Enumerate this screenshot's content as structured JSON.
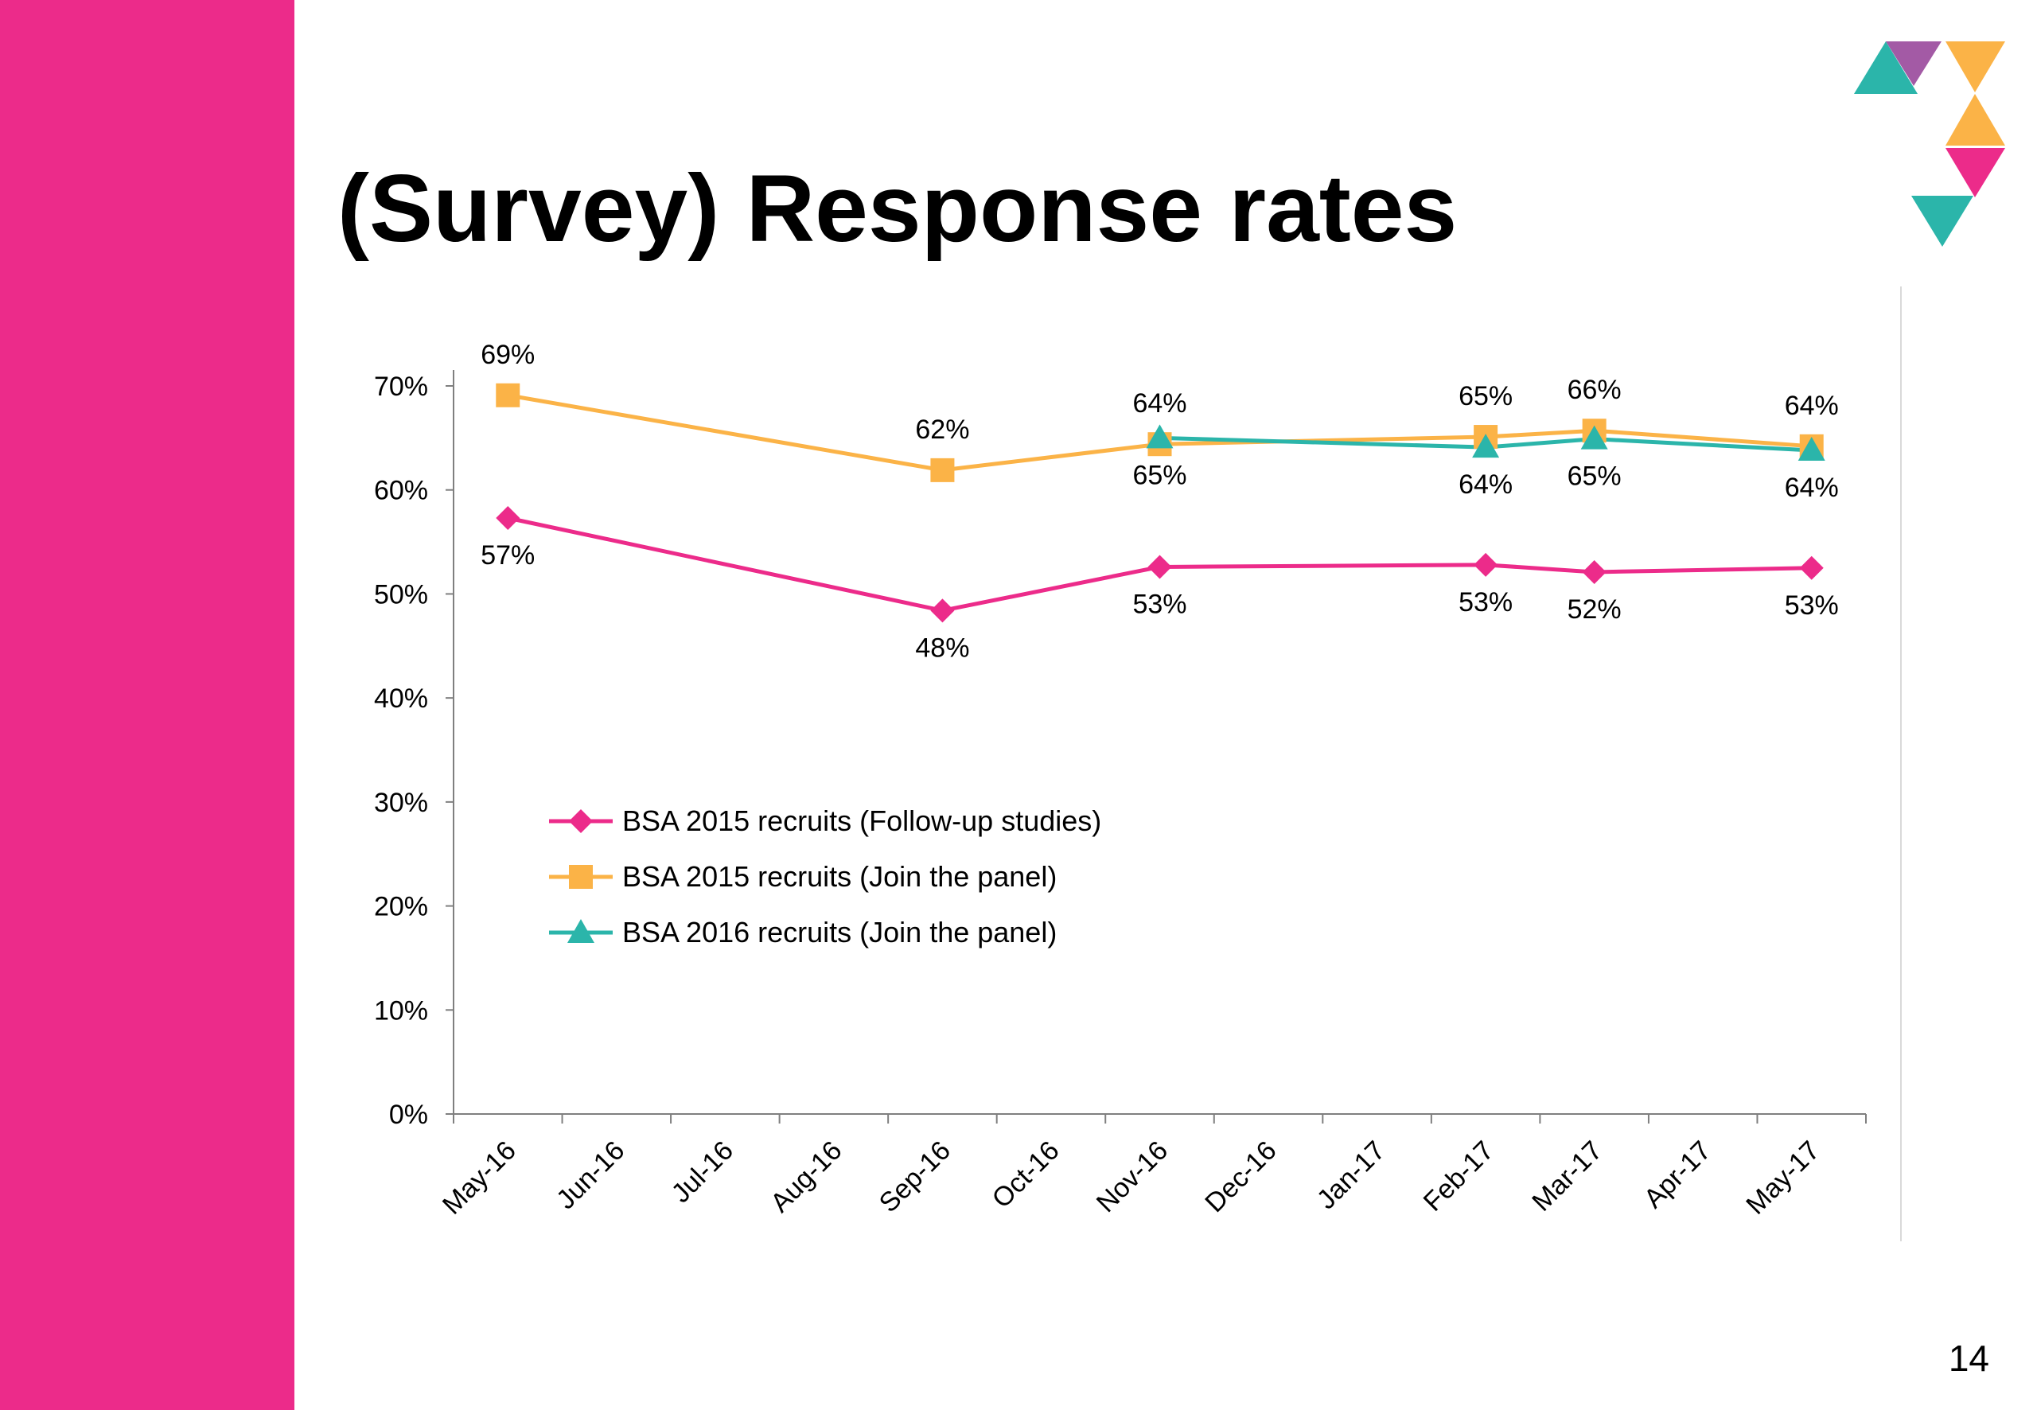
{
  "slide": {
    "title": "(Survey) Response rates",
    "page_number": "14",
    "colors": {
      "sidebar": "#ec2b8a",
      "pink": "#ec2b8a",
      "orange": "#fbb347",
      "teal": "#2bb5aa",
      "purple": "#a35aa5"
    },
    "logo": {
      "icon": "triangle-logo-icon"
    }
  },
  "chart_data": {
    "type": "line",
    "title": "",
    "xlabel": "",
    "ylabel": "",
    "categories": [
      "May-16",
      "Jun-16",
      "Jul-16",
      "Aug-16",
      "Sep-16",
      "Oct-16",
      "Nov-16",
      "Dec-16",
      "Jan-17",
      "Feb-17",
      "Mar-17",
      "Apr-17",
      "May-17"
    ],
    "ylim": [
      0,
      70
    ],
    "yticks": [
      0,
      10,
      20,
      30,
      40,
      50,
      60,
      70
    ],
    "ytick_labels": [
      "0%",
      "10%",
      "20%",
      "30%",
      "40%",
      "50%",
      "60%",
      "70%"
    ],
    "grid": false,
    "legend_position": "bottom-left",
    "series": [
      {
        "name": "BSA 2015 recruits (Follow-up studies)",
        "color": "#ec2b8a",
        "marker": "diamond",
        "values": [
          57.3,
          null,
          null,
          null,
          48.4,
          null,
          52.6,
          null,
          null,
          52.8,
          52.1,
          null,
          52.5
        ],
        "labels": [
          "57%",
          null,
          null,
          null,
          "48%",
          null,
          "53%",
          null,
          null,
          "53%",
          "52%",
          null,
          "53%"
        ],
        "label_position": "below"
      },
      {
        "name": "BSA 2015 recruits (Join the panel)",
        "color": "#fbb347",
        "marker": "square",
        "values": [
          69.1,
          null,
          null,
          null,
          61.9,
          null,
          64.4,
          null,
          null,
          65.1,
          65.7,
          null,
          64.2
        ],
        "labels": [
          "69%",
          null,
          null,
          null,
          "62%",
          null,
          "64%",
          null,
          null,
          "65%",
          "66%",
          null,
          "64%"
        ],
        "label_position": "above"
      },
      {
        "name": "BSA 2016 recruits (Join the panel)",
        "color": "#2bb5aa",
        "marker": "triangle",
        "values": [
          null,
          null,
          null,
          null,
          null,
          null,
          65.0,
          null,
          null,
          64.1,
          64.9,
          null,
          63.8
        ],
        "labels": [
          null,
          null,
          null,
          null,
          null,
          null,
          "65%",
          null,
          null,
          "64%",
          "65%",
          null,
          "64%"
        ],
        "label_position": "below"
      }
    ]
  }
}
